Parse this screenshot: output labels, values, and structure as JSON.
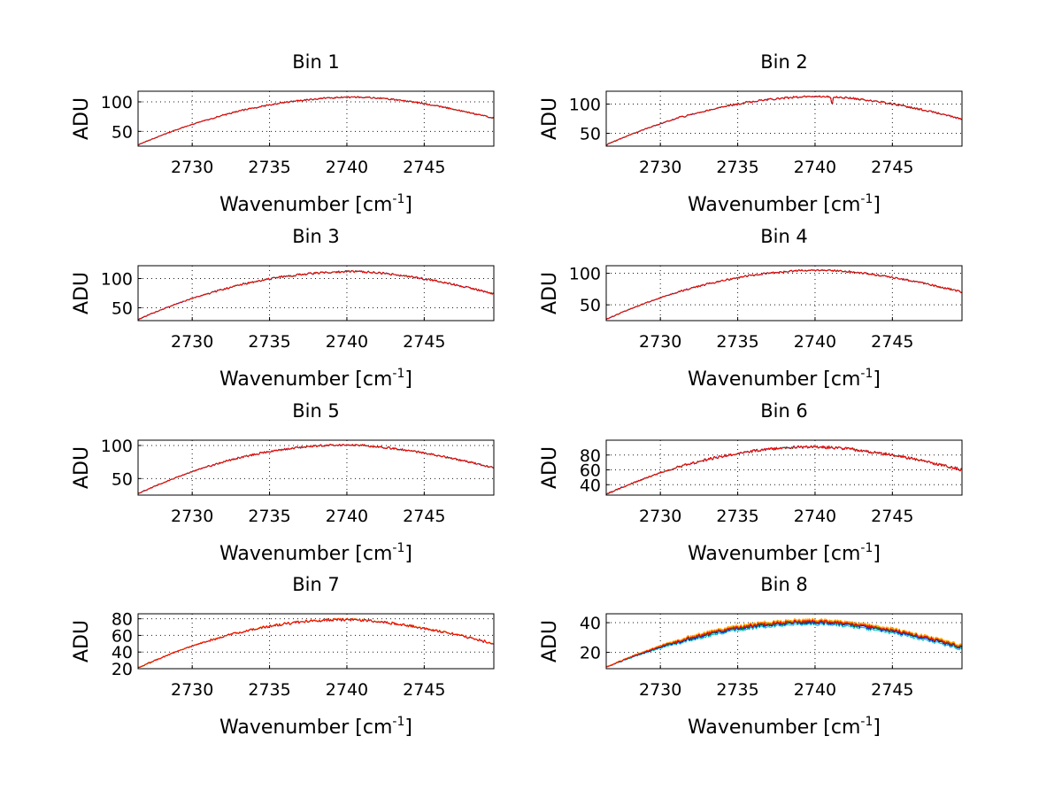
{
  "chart_data": [
    {
      "type": "line",
      "title": "Bin 1",
      "xlabel": "Wavenumber [cm",
      "xlabel_sup": "-1",
      "xlabel_suffix": "]",
      "ylabel": "ADU",
      "xlim": [
        2726.5,
        2749.5
      ],
      "ylim": [
        25,
        118
      ],
      "xticks": [
        2730,
        2735,
        2740,
        2745
      ],
      "yticks": [
        50,
        100
      ],
      "grid": true,
      "profile": {
        "start": 27,
        "peak": 108,
        "peak_x": 2740.8,
        "end": 72,
        "noise": 1.2
      },
      "series": [
        {
          "color": "#0000ff",
          "offset": 0
        },
        {
          "color": "#008000",
          "offset": 0
        },
        {
          "color": "#ff0000",
          "offset": 0
        }
      ]
    },
    {
      "type": "line",
      "title": "Bin 2",
      "xlabel": "Wavenumber [cm",
      "xlabel_sup": "-1",
      "xlabel_suffix": "]",
      "ylabel": "ADU",
      "xlim": [
        2726.5,
        2749.5
      ],
      "ylim": [
        28,
        122
      ],
      "xticks": [
        2730,
        2735,
        2740,
        2745
      ],
      "yticks": [
        50,
        100
      ],
      "grid": true,
      "profile": {
        "start": 30,
        "peak": 113,
        "peak_x": 2740.5,
        "end": 74,
        "noise": 1.6
      },
      "dips": [
        {
          "x": 2741.1,
          "depth": 14
        }
      ],
      "series": [
        {
          "color": "#0000ff",
          "offset": 0
        },
        {
          "color": "#008000",
          "offset": 0
        },
        {
          "color": "#ff0000",
          "offset": 0
        }
      ]
    },
    {
      "type": "line",
      "title": "Bin 3",
      "xlabel": "Wavenumber [cm",
      "xlabel_sup": "-1",
      "xlabel_suffix": "]",
      "ylabel": "ADU",
      "xlim": [
        2726.5,
        2749.5
      ],
      "ylim": [
        28,
        122
      ],
      "xticks": [
        2730,
        2735,
        2740,
        2745
      ],
      "yticks": [
        50,
        100
      ],
      "grid": true,
      "profile": {
        "start": 30,
        "peak": 112,
        "peak_x": 2740.5,
        "end": 74,
        "noise": 1.6
      },
      "series": [
        {
          "color": "#0000ff",
          "offset": 0
        },
        {
          "color": "#008000",
          "offset": 0
        },
        {
          "color": "#ff0000",
          "offset": 0
        }
      ]
    },
    {
      "type": "line",
      "title": "Bin 4",
      "xlabel": "Wavenumber [cm",
      "xlabel_sup": "-1",
      "xlabel_suffix": "]",
      "ylabel": "ADU",
      "xlim": [
        2726.5,
        2749.5
      ],
      "ylim": [
        25,
        112
      ],
      "xticks": [
        2730,
        2735,
        2740,
        2745
      ],
      "yticks": [
        50,
        100
      ],
      "grid": true,
      "profile": {
        "start": 27,
        "peak": 105,
        "peak_x": 2740.5,
        "end": 70,
        "noise": 1.4
      },
      "series": [
        {
          "color": "#0000ff",
          "offset": 0
        },
        {
          "color": "#008000",
          "offset": 0
        },
        {
          "color": "#ff0000",
          "offset": 0
        }
      ]
    },
    {
      "type": "line",
      "title": "Bin 5",
      "xlabel": "Wavenumber [cm",
      "xlabel_sup": "-1",
      "xlabel_suffix": "]",
      "ylabel": "ADU",
      "xlim": [
        2726.5,
        2749.5
      ],
      "ylim": [
        25,
        108
      ],
      "xticks": [
        2730,
        2735,
        2740,
        2745
      ],
      "yticks": [
        50,
        100
      ],
      "grid": true,
      "profile": {
        "start": 27,
        "peak": 101,
        "peak_x": 2740.0,
        "end": 66,
        "noise": 1.4
      },
      "series": [
        {
          "color": "#0000ff",
          "offset": 0
        },
        {
          "color": "#008000",
          "offset": 0
        },
        {
          "color": "#ff0000",
          "offset": 0
        }
      ]
    },
    {
      "type": "line",
      "title": "Bin 6",
      "xlabel": "Wavenumber [cm",
      "xlabel_sup": "-1",
      "xlabel_suffix": "]",
      "ylabel": "ADU",
      "xlim": [
        2726.5,
        2749.5
      ],
      "ylim": [
        26,
        100
      ],
      "xticks": [
        2730,
        2735,
        2740,
        2745
      ],
      "yticks": [
        40,
        60,
        80
      ],
      "grid": true,
      "profile": {
        "start": 27,
        "peak": 91,
        "peak_x": 2740.0,
        "end": 60,
        "noise": 1.8
      },
      "series": [
        {
          "color": "#0000ff",
          "offset": 0
        },
        {
          "color": "#008000",
          "offset": 0
        },
        {
          "color": "#ff0000",
          "offset": 0
        }
      ]
    },
    {
      "type": "line",
      "title": "Bin 7",
      "xlabel": "Wavenumber [cm",
      "xlabel_sup": "-1",
      "xlabel_suffix": "]",
      "ylabel": "ADU",
      "xlim": [
        2726.5,
        2749.5
      ],
      "ylim": [
        20,
        86
      ],
      "xticks": [
        2730,
        2735,
        2740,
        2745
      ],
      "yticks": [
        20,
        40,
        60,
        80
      ],
      "grid": true,
      "profile": {
        "start": 21,
        "peak": 79,
        "peak_x": 2740.0,
        "end": 50,
        "noise": 1.4
      },
      "series": [
        {
          "color": "#0000ff",
          "offset": 0
        },
        {
          "color": "#008000",
          "offset": 0
        },
        {
          "color": "#ffa500",
          "offset": 0.3
        },
        {
          "color": "#ff0000",
          "offset": 0
        }
      ]
    },
    {
      "type": "line",
      "title": "Bin 8",
      "xlabel": "Wavenumber [cm",
      "xlabel_sup": "-1",
      "xlabel_suffix": "]",
      "ylabel": "ADU",
      "xlim": [
        2726.5,
        2749.5
      ],
      "ylim": [
        9,
        46
      ],
      "xticks": [
        2730,
        2735,
        2740,
        2745
      ],
      "yticks": [
        20,
        40
      ],
      "grid": true,
      "profile": {
        "start": 10,
        "peak": 41,
        "peak_x": 2740.0,
        "end": 24,
        "noise": 0.9
      },
      "series": [
        {
          "color": "#00bfbf",
          "offset": -2.0
        },
        {
          "color": "#0000ff",
          "offset": -1.0
        },
        {
          "color": "#008000",
          "offset": -0.5
        },
        {
          "color": "#bfbf00",
          "offset": 0.5
        },
        {
          "color": "#ffa500",
          "offset": 1.0
        },
        {
          "color": "#ff0000",
          "offset": 0
        }
      ]
    }
  ]
}
